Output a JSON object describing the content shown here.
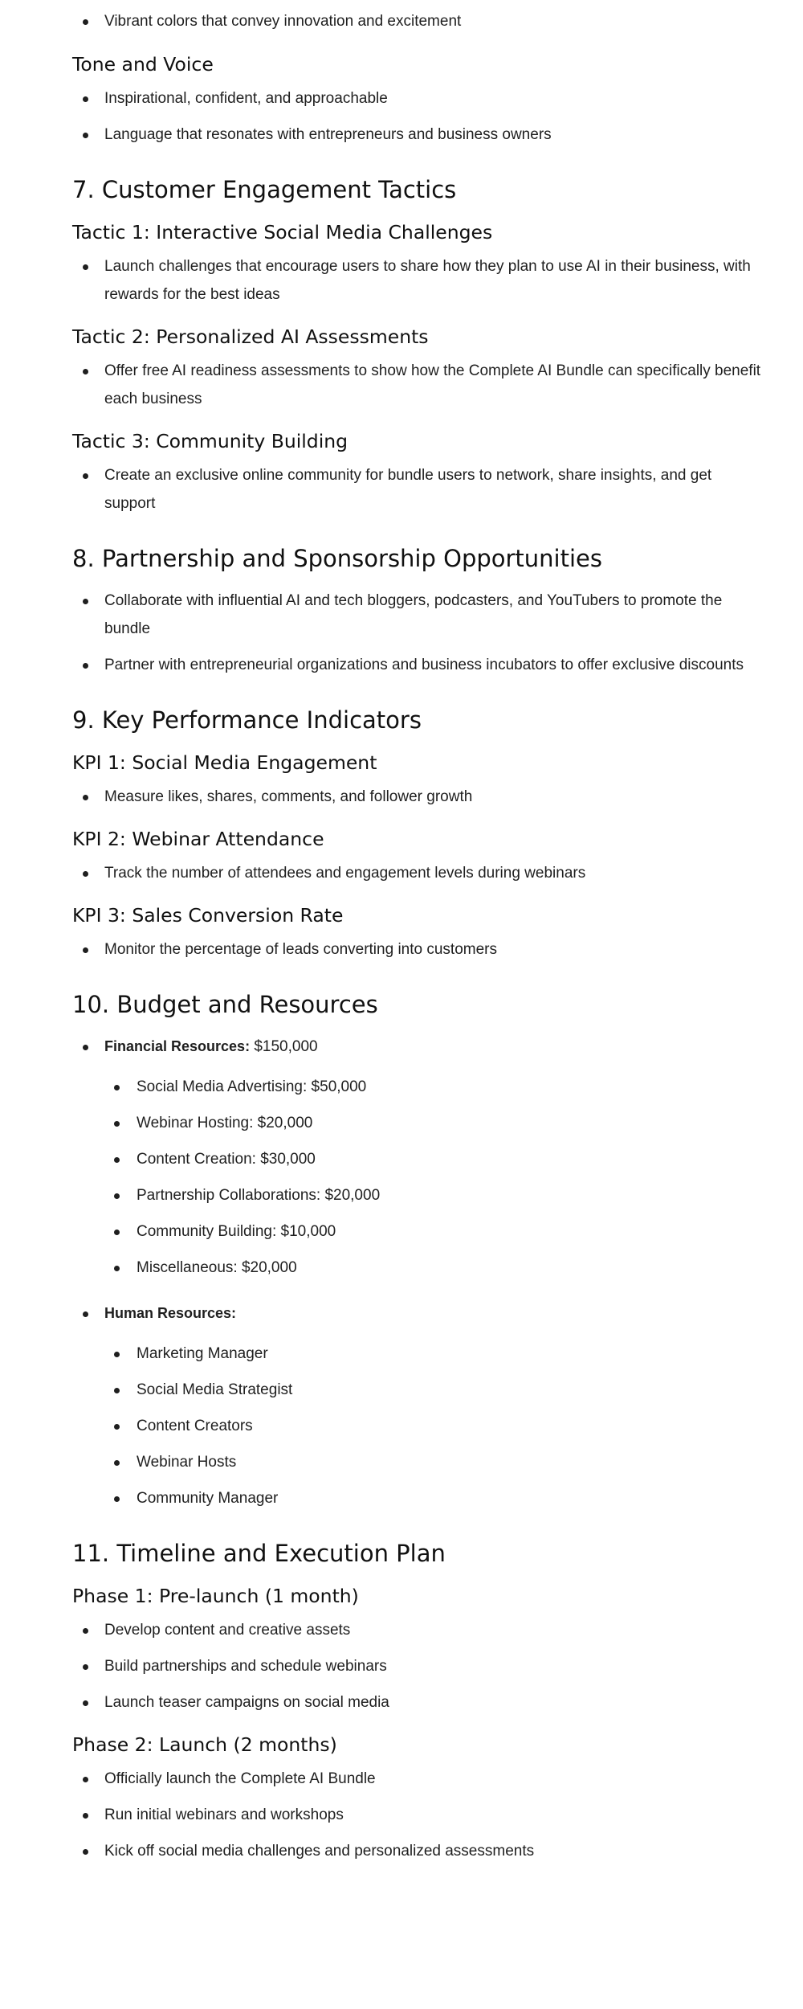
{
  "top_cutoff": "Vibrant colors that convey innovation and excitement",
  "tone": {
    "heading": "Tone and Voice",
    "items": [
      "Inspirational, confident, and approachable",
      "Language that resonates with entrepreneurs and business owners"
    ]
  },
  "section7": {
    "heading": "7. Customer Engagement Tactics",
    "tactic1": {
      "heading": "Tactic 1: Interactive Social Media Challenges",
      "item": "Launch challenges that encourage users to share how they plan to use AI in their business, with rewards for the best ideas"
    },
    "tactic2": {
      "heading": "Tactic 2: Personalized AI Assessments",
      "item": "Offer free AI readiness assessments to show how the Complete AI Bundle can specifically benefit each business"
    },
    "tactic3": {
      "heading": "Tactic 3: Community Building",
      "item": "Create an exclusive online community for bundle users to network, share insights, and get support"
    }
  },
  "section8": {
    "heading": "8. Partnership and Sponsorship Opportunities",
    "items": [
      "Collaborate with influential AI and tech bloggers, podcasters, and YouTubers to promote the bundle",
      "Partner with entrepreneurial organizations and business incubators to offer exclusive discounts"
    ]
  },
  "section9": {
    "heading": "9. Key Performance Indicators",
    "kpi1": {
      "heading": "KPI 1: Social Media Engagement",
      "item": "Measure likes, shares, comments, and follower growth"
    },
    "kpi2": {
      "heading": "KPI 2: Webinar Attendance",
      "item": "Track the number of attendees and engagement levels during webinars"
    },
    "kpi3": {
      "heading": "KPI 3: Sales Conversion Rate",
      "item": "Monitor the percentage of leads converting into customers"
    }
  },
  "section10": {
    "heading": "10. Budget and Resources",
    "financial": {
      "label": "Financial Resources:",
      "value": " $150,000",
      "items": [
        "Social Media Advertising: $50,000",
        "Webinar Hosting: $20,000",
        "Content Creation: $30,000",
        "Partnership Collaborations: $20,000",
        "Community Building: $10,000",
        "Miscellaneous: $20,000"
      ]
    },
    "human": {
      "label": "Human Resources:",
      "items": [
        "Marketing Manager",
        "Social Media Strategist",
        "Content Creators",
        "Webinar Hosts",
        "Community Manager"
      ]
    }
  },
  "section11": {
    "heading": "11. Timeline and Execution Plan",
    "phase1": {
      "heading": "Phase 1: Pre-launch (1 month)",
      "items": [
        "Develop content and creative assets",
        "Build partnerships and schedule webinars",
        "Launch teaser campaigns on social media"
      ]
    },
    "phase2": {
      "heading": "Phase 2: Launch (2 months)",
      "items": [
        "Officially launch the Complete AI Bundle",
        "Run initial webinars and workshops",
        "Kick off social media challenges and personalized assessments"
      ]
    }
  }
}
